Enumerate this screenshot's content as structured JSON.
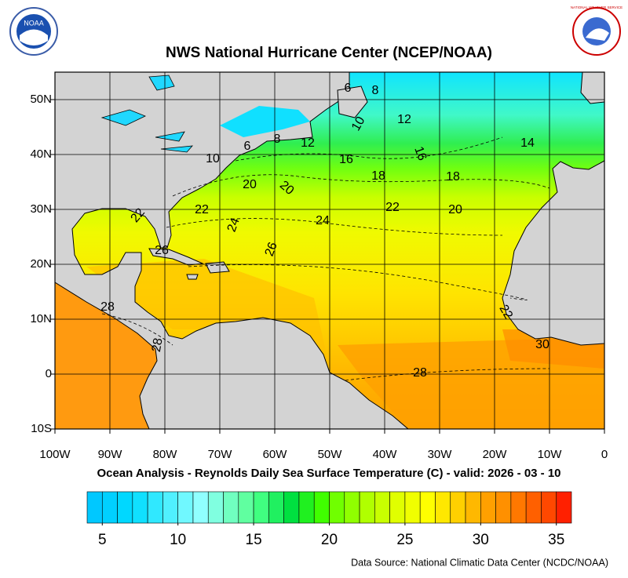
{
  "header": {
    "title": "NWS National Hurricane Center (NCEP/NOAA)",
    "logo_left": "NOAA",
    "logo_right": "NATIONAL WEATHER SERVICE"
  },
  "map": {
    "xlim": [
      -100,
      0
    ],
    "ylim": [
      -10,
      55
    ],
    "xticks": [
      {
        "value": -100,
        "label": "100W"
      },
      {
        "value": -90,
        "label": "90W"
      },
      {
        "value": -80,
        "label": "80W"
      },
      {
        "value": -70,
        "label": "70W"
      },
      {
        "value": -60,
        "label": "60W"
      },
      {
        "value": -50,
        "label": "50W"
      },
      {
        "value": -40,
        "label": "40W"
      },
      {
        "value": -30,
        "label": "30W"
      },
      {
        "value": -20,
        "label": "20W"
      },
      {
        "value": -10,
        "label": "10W"
      },
      0
    ],
    "yticks": [
      {
        "value": -10,
        "label": "10S"
      },
      0,
      {
        "value": 10,
        "label": "10N"
      },
      {
        "value": 20,
        "label": "20N"
      },
      {
        "value": 30,
        "label": "30N"
      },
      {
        "value": 40,
        "label": "40N"
      },
      {
        "value": 50,
        "label": "50N"
      }
    ],
    "grid": true,
    "contour_labels": [
      6,
      8,
      10,
      12,
      14,
      6,
      8,
      12,
      16,
      16,
      18,
      18,
      10,
      20,
      20,
      22,
      22,
      20,
      24,
      24,
      26,
      26,
      22,
      28,
      28,
      22,
      30,
      28
    ]
  },
  "subtitle": "Ocean Analysis - Reynolds Daily Sea Surface Temperature (C) - valid: 2026 - 03 - 10",
  "colorbar": {
    "range": [
      4,
      36
    ],
    "ticks": [
      5,
      10,
      15,
      20,
      25,
      30,
      35
    ],
    "colors": [
      "#00c8ff",
      "#00d0ff",
      "#00d8ff",
      "#10e0ff",
      "#30e8ff",
      "#50f0ff",
      "#70f8ff",
      "#90ffff",
      "#80ffe0",
      "#70ffc0",
      "#60ffa0",
      "#40ff80",
      "#20f060",
      "#00e040",
      "#20f020",
      "#40ff00",
      "#70ff00",
      "#90ff00",
      "#b0ff00",
      "#c8ff00",
      "#e0ff00",
      "#f0ff00",
      "#ffff00",
      "#ffe800",
      "#ffd000",
      "#ffb800",
      "#ffa000",
      "#ff9000",
      "#ff7800",
      "#ff6000",
      "#ff4800",
      "#ff2000"
    ]
  },
  "source": "Data Source: National Climatic Data Center (NCDC/NOAA)"
}
